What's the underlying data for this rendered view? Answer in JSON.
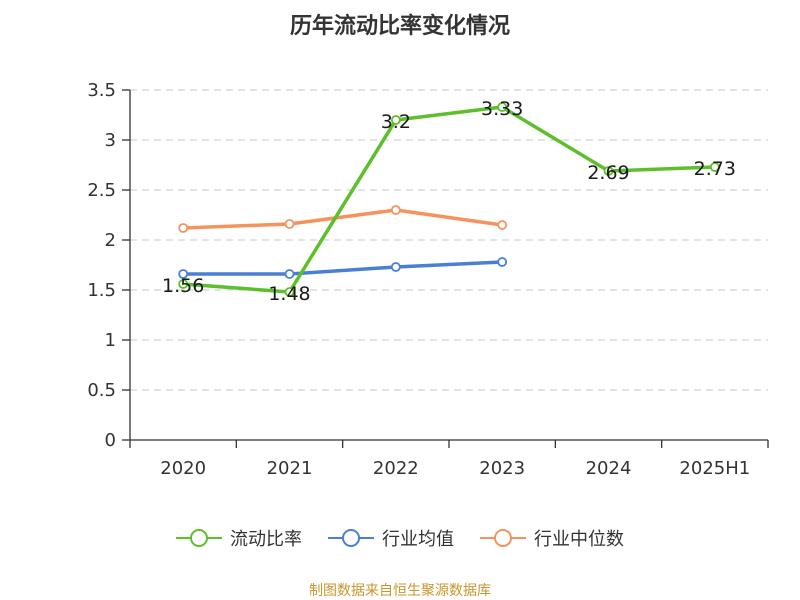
{
  "chart_data": {
    "type": "line",
    "title": "历年流动比率变化情况",
    "categories": [
      "2020",
      "2021",
      "2022",
      "2023",
      "2024",
      "2025H1"
    ],
    "ylim": [
      0,
      3.5
    ],
    "yticks": [
      0,
      0.5,
      1,
      1.5,
      2,
      2.5,
      3,
      3.5
    ],
    "ytick_labels": [
      "0",
      "0.5",
      "1",
      "1.5",
      "2",
      "2.5",
      "3",
      "3.5"
    ],
    "grid": true,
    "legend_position": "bottom",
    "series": [
      {
        "name": "流动比率",
        "color": "#5dbf2b",
        "values": [
          1.56,
          1.48,
          3.2,
          3.33,
          2.69,
          2.73
        ],
        "data_labels": [
          "1.56",
          "1.48",
          "3.2",
          "3.33",
          "2.69",
          "2.73"
        ]
      },
      {
        "name": "行业均值",
        "color": "#4a7fd6",
        "values": [
          1.66,
          1.66,
          1.73,
          1.78,
          null,
          null
        ]
      },
      {
        "name": "行业中位数",
        "color": "#f5925e",
        "values": [
          2.12,
          2.16,
          2.3,
          2.15,
          null,
          null
        ]
      }
    ]
  },
  "footer": {
    "source": "制图数据来自恒生聚源数据库"
  }
}
